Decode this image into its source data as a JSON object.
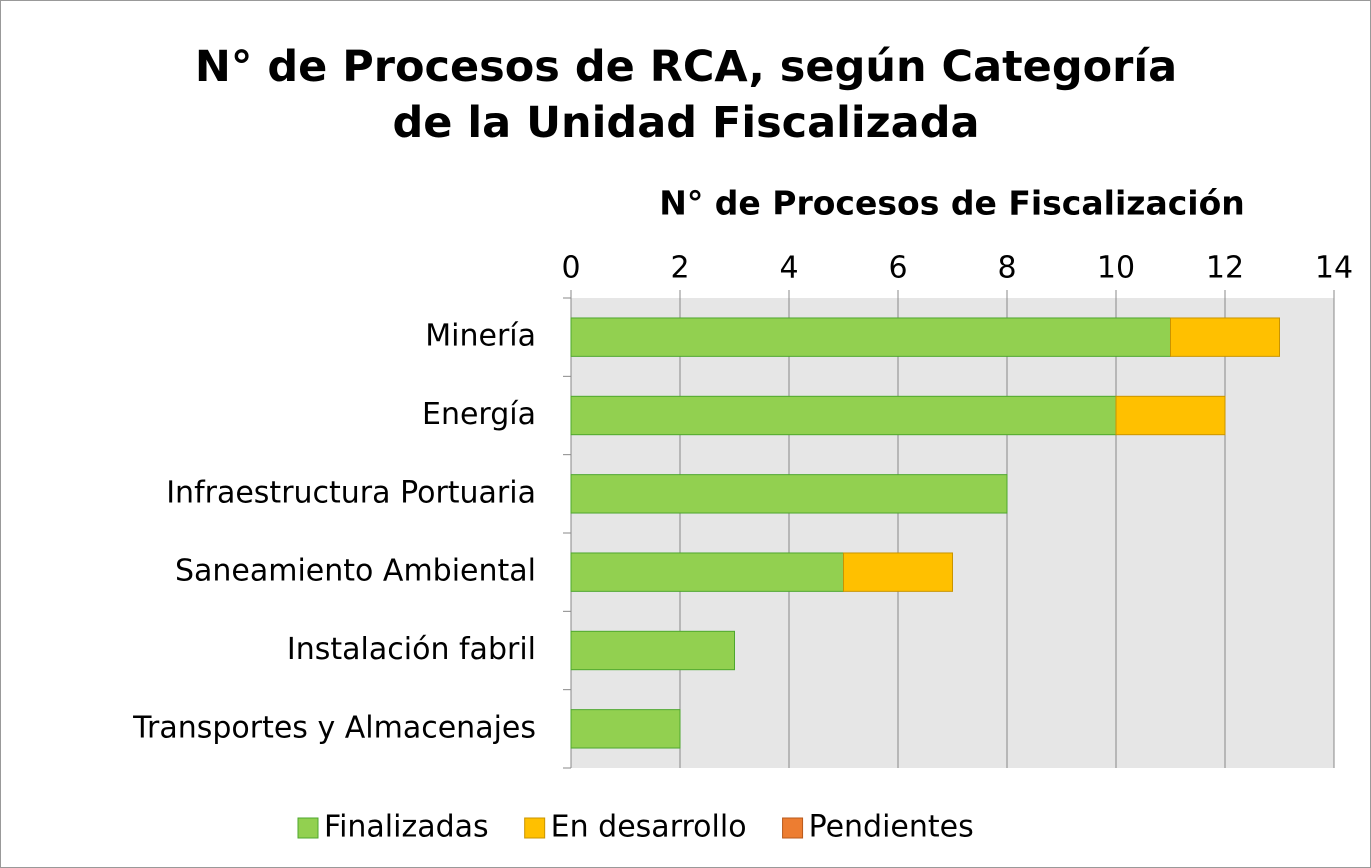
{
  "chart_data": {
    "type": "stacked_bar_horizontal",
    "title": "N° de Procesos de RCA, según Categoría de la Unidad Fiscalizada",
    "x_axis_label": "N° de Procesos de Fiscalización",
    "categories": [
      "Minería",
      "Energía",
      "Infraestructura Portuaria",
      "Saneamiento Ambiental",
      "Instalación fabril",
      "Transportes y Almacenajes"
    ],
    "series": [
      {
        "name": "Finalizadas",
        "color": "#92d050",
        "values": [
          11,
          10,
          8,
          5,
          3,
          2
        ]
      },
      {
        "name": "En desarrollo",
        "color": "#ffc000",
        "values": [
          2,
          2,
          0,
          2,
          0,
          0
        ]
      },
      {
        "name": "Pendientes",
        "color": "#ed7d31",
        "values": [
          0,
          0,
          0,
          0,
          0,
          0
        ]
      }
    ],
    "xlim": [
      0,
      14
    ],
    "xticks": [
      0,
      2,
      4,
      6,
      8,
      10,
      12,
      14
    ],
    "grid": true,
    "legend": "bottom"
  }
}
